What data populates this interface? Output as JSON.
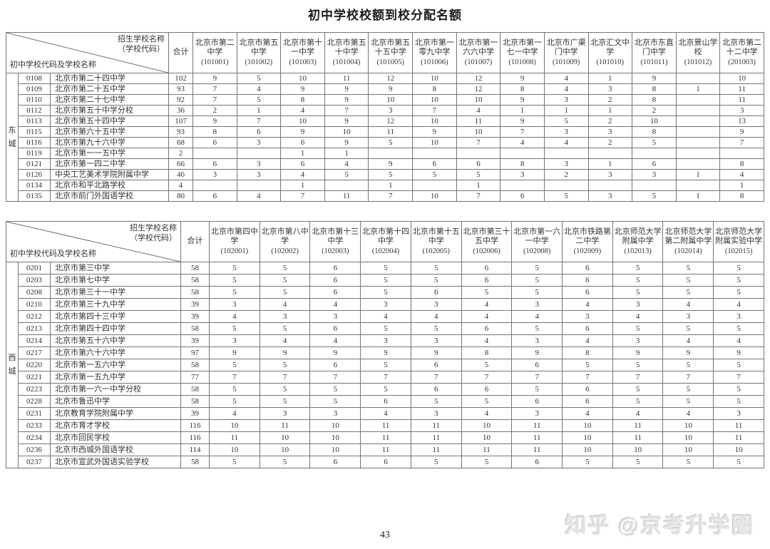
{
  "title": "初中学校校额到校分配名额",
  "page_number": "43",
  "watermark": "知乎 @京考升学圈",
  "corner": {
    "recruiting_label_line1": "招生学校名称",
    "recruiting_label_line2": "（学校代码）",
    "middle_school_label": "初中学校代码及学校名称",
    "total_label": "合计"
  },
  "tables": [
    {
      "region": "东城",
      "columns": [
        {
          "name": "北京市第二中学",
          "code": "101001"
        },
        {
          "name": "北京市第五中学",
          "code": "101002"
        },
        {
          "name": "北京市第十一中学",
          "code": "101003"
        },
        {
          "name": "北京市第五十中学",
          "code": "101004"
        },
        {
          "name": "北京市第五十五中学",
          "code": "101005"
        },
        {
          "name": "北京市第一零九中学",
          "code": "101006"
        },
        {
          "name": "北京市第一六六中学",
          "code": "101007"
        },
        {
          "name": "北京市第一七一中学",
          "code": "101008"
        },
        {
          "name": "北京市广渠门中学",
          "code": "101009"
        },
        {
          "name": "北京汇文中学",
          "code": "101010"
        },
        {
          "name": "北京市东直门中学",
          "code": "101011"
        },
        {
          "name": "北京景山学校",
          "code": "101012"
        },
        {
          "name": "北京市第二十二中学",
          "code": "201003"
        }
      ],
      "rows": [
        {
          "code": "0108",
          "name": "北京市第二十四中学",
          "total": "102",
          "values": [
            "9",
            "5",
            "10",
            "11",
            "12",
            "10",
            "12",
            "9",
            "4",
            "1",
            "9",
            "",
            "10"
          ]
        },
        {
          "code": "0109",
          "name": "北京市第二十五中学",
          "total": "93",
          "values": [
            "7",
            "4",
            "9",
            "9",
            "9",
            "8",
            "12",
            "8",
            "4",
            "3",
            "8",
            "1",
            "11"
          ]
        },
        {
          "code": "0110",
          "name": "北京市第二十七中学",
          "total": "92",
          "values": [
            "7",
            "5",
            "8",
            "9",
            "10",
            "10",
            "10",
            "9",
            "3",
            "2",
            "8",
            "",
            "11"
          ]
        },
        {
          "code": "0112",
          "name": "北京市第五十中学分校",
          "total": "36",
          "values": [
            "2",
            "1",
            "4",
            "7",
            "3",
            "7",
            "4",
            "1",
            "1",
            "1",
            "2",
            "",
            "3"
          ]
        },
        {
          "code": "0113",
          "name": "北京市第五十四中学",
          "total": "107",
          "values": [
            "9",
            "7",
            "10",
            "9",
            "12",
            "10",
            "11",
            "9",
            "5",
            "2",
            "10",
            "",
            "13"
          ]
        },
        {
          "code": "0115",
          "name": "北京市第六十五中学",
          "total": "93",
          "values": [
            "8",
            "6",
            "9",
            "10",
            "11",
            "9",
            "10",
            "7",
            "3",
            "3",
            "8",
            "",
            "9"
          ]
        },
        {
          "code": "0116",
          "name": "北京市第九十六中学",
          "total": "68",
          "values": [
            "6",
            "3",
            "6",
            "9",
            "5",
            "10",
            "7",
            "4",
            "4",
            "2",
            "5",
            "",
            "7"
          ]
        },
        {
          "code": "0119",
          "name": "北京市第一一五中学",
          "total": "2",
          "values": [
            "",
            "",
            "1",
            "1",
            "",
            "",
            "",
            "",
            "",
            "",
            "",
            "",
            ""
          ]
        },
        {
          "code": "0121",
          "name": "北京市第一四二中学",
          "total": "66",
          "values": [
            "6",
            "3",
            "6",
            "4",
            "9",
            "6",
            "6",
            "8",
            "3",
            "1",
            "6",
            "",
            "8"
          ]
        },
        {
          "code": "0126",
          "name": "中央工艺美术学院附属中学",
          "total": "46",
          "values": [
            "3",
            "3",
            "4",
            "5",
            "5",
            "5",
            "5",
            "3",
            "2",
            "3",
            "3",
            "1",
            "4"
          ]
        },
        {
          "code": "0134",
          "name": "北京市和平北路学校",
          "total": "4",
          "values": [
            "",
            "",
            "1",
            "",
            "1",
            "",
            "1",
            "",
            "",
            "",
            "",
            "",
            "1"
          ]
        },
        {
          "code": "0135",
          "name": "北京市前门外国语学校",
          "total": "80",
          "values": [
            "6",
            "4",
            "7",
            "11",
            "7",
            "10",
            "7",
            "6",
            "5",
            "3",
            "5",
            "1",
            "8"
          ]
        }
      ]
    },
    {
      "region": "西城",
      "columns": [
        {
          "name": "北京市第四中学",
          "code": "102001"
        },
        {
          "name": "北京市第八中学",
          "code": "102002"
        },
        {
          "name": "北京市第十三中学",
          "code": "102003"
        },
        {
          "name": "北京市第十四中学",
          "code": "102004"
        },
        {
          "name": "北京市第十五中学",
          "code": "102005"
        },
        {
          "name": "北京市第三十五中学",
          "code": "102006"
        },
        {
          "name": "北京市第一六一中学",
          "code": "102008"
        },
        {
          "name": "北京市铁路第二中学",
          "code": "102009"
        },
        {
          "name": "北京师范大学附属中学",
          "code": "102013"
        },
        {
          "name": "北京师范大学第二附属中学",
          "code": "102014"
        },
        {
          "name": "北京师范大学附属实验中学",
          "code": "102015"
        }
      ],
      "rows": [
        {
          "code": "0201",
          "name": "北京市第三中学",
          "total": "58",
          "values": [
            "5",
            "5",
            "6",
            "5",
            "5",
            "6",
            "5",
            "6",
            "5",
            "5",
            "5"
          ]
        },
        {
          "code": "0203",
          "name": "北京市第七中学",
          "total": "58",
          "values": [
            "5",
            "5",
            "6",
            "5",
            "5",
            "6",
            "5",
            "6",
            "5",
            "5",
            "5"
          ]
        },
        {
          "code": "0208",
          "name": "北京市第三十一中学",
          "total": "58",
          "values": [
            "5",
            "5",
            "6",
            "5",
            "6",
            "5",
            "5",
            "6",
            "5",
            "5",
            "5"
          ]
        },
        {
          "code": "0210",
          "name": "北京市第三十九中学",
          "total": "39",
          "values": [
            "3",
            "4",
            "4",
            "3",
            "3",
            "4",
            "3",
            "4",
            "3",
            "4",
            "4"
          ]
        },
        {
          "code": "0212",
          "name": "北京市第四十三中学",
          "total": "39",
          "values": [
            "4",
            "3",
            "3",
            "4",
            "4",
            "4",
            "4",
            "3",
            "4",
            "3",
            "3"
          ]
        },
        {
          "code": "0213",
          "name": "北京市第四十四中学",
          "total": "58",
          "values": [
            "5",
            "5",
            "6",
            "5",
            "5",
            "6",
            "5",
            "6",
            "5",
            "5",
            "5"
          ]
        },
        {
          "code": "0214",
          "name": "北京市第五十六中学",
          "total": "39",
          "values": [
            "3",
            "4",
            "4",
            "3",
            "3",
            "4",
            "3",
            "4",
            "3",
            "4",
            "4"
          ]
        },
        {
          "code": "0217",
          "name": "北京市第六十六中学",
          "total": "97",
          "values": [
            "9",
            "9",
            "9",
            "9",
            "9",
            "8",
            "9",
            "8",
            "9",
            "9",
            "9"
          ]
        },
        {
          "code": "0220",
          "name": "北京市第一五六中学",
          "total": "58",
          "values": [
            "5",
            "5",
            "6",
            "5",
            "6",
            "5",
            "6",
            "5",
            "5",
            "5",
            "5"
          ]
        },
        {
          "code": "0221",
          "name": "北京市第一五九中学",
          "total": "77",
          "values": [
            "7",
            "7",
            "7",
            "7",
            "7",
            "7",
            "7",
            "7",
            "7",
            "7",
            "7"
          ]
        },
        {
          "code": "0223",
          "name": "北京市第一六一中学分校",
          "total": "58",
          "values": [
            "5",
            "5",
            "5",
            "5",
            "6",
            "6",
            "5",
            "6",
            "5",
            "5",
            "5"
          ]
        },
        {
          "code": "0228",
          "name": "北京市鲁迅中学",
          "total": "58",
          "values": [
            "5",
            "5",
            "5",
            "6",
            "5",
            "5",
            "6",
            "6",
            "5",
            "5",
            "5"
          ]
        },
        {
          "code": "0231",
          "name": "北京教育学院附属中学",
          "total": "39",
          "values": [
            "4",
            "3",
            "3",
            "4",
            "3",
            "4",
            "3",
            "4",
            "4",
            "4",
            "3"
          ]
        },
        {
          "code": "0233",
          "name": "北京市育才学校",
          "total": "116",
          "values": [
            "10",
            "11",
            "10",
            "11",
            "11",
            "10",
            "11",
            "10",
            "11",
            "10",
            "11"
          ]
        },
        {
          "code": "0234",
          "name": "北京市回民学校",
          "total": "116",
          "values": [
            "11",
            "10",
            "10",
            "11",
            "11",
            "10",
            "11",
            "10",
            "11",
            "10",
            "11"
          ]
        },
        {
          "code": "0236",
          "name": "北京市西城外国语学校",
          "total": "114",
          "values": [
            "10",
            "10",
            "10",
            "11",
            "11",
            "11",
            "11",
            "10",
            "10",
            "10",
            "10"
          ]
        },
        {
          "code": "0237",
          "name": "北京市宣武外国语实验学校",
          "total": "58",
          "values": [
            "5",
            "5",
            "6",
            "6",
            "5",
            "5",
            "6",
            "5",
            "5",
            "5",
            "5"
          ]
        }
      ]
    }
  ]
}
